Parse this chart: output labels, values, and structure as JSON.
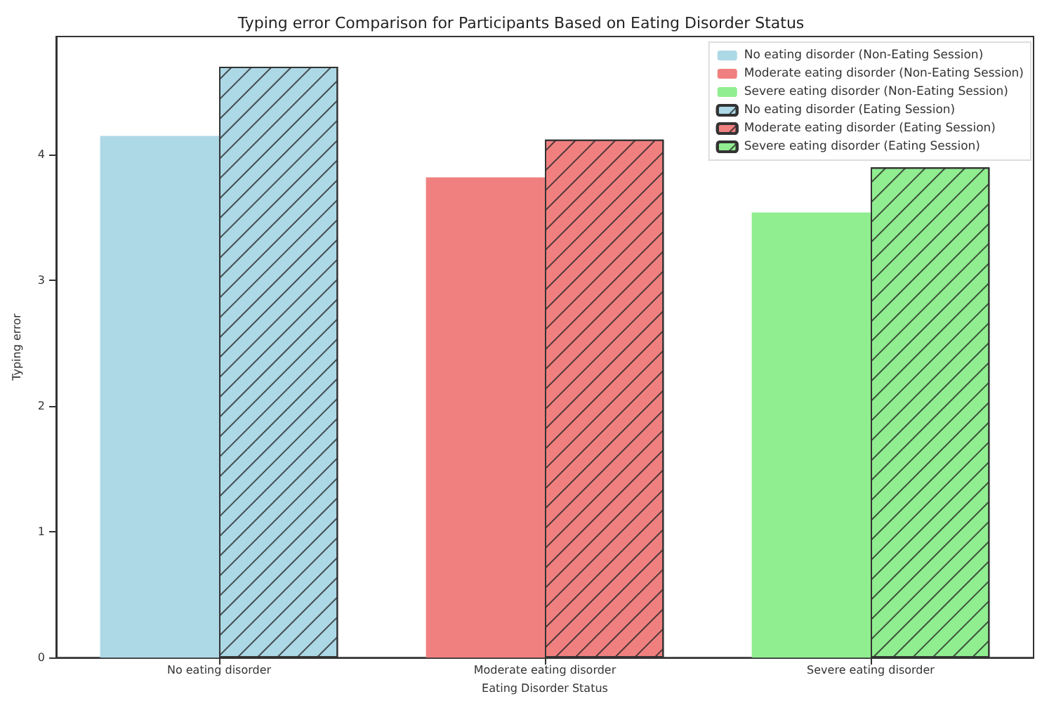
{
  "chart_data": {
    "type": "bar",
    "title": "Typing error Comparison for Participants Based on Eating Disorder Status",
    "xlabel": "Eating Disorder Status",
    "ylabel": "Typing error",
    "categories": [
      "No eating disorder",
      "Moderate eating disorder",
      "Severe eating disorder"
    ],
    "series": [
      {
        "name": "No eating disorder (Non-Eating Session)",
        "color": "#add8e6",
        "values": [
          4.15,
          null,
          null
        ]
      },
      {
        "name": "Moderate eating disorder (Non-Eating Session)",
        "color": "#f08080",
        "values": [
          null,
          3.82,
          null
        ]
      },
      {
        "name": "Severe eating disorder (Non-Eating Session)",
        "color": "#90ee90",
        "values": [
          null,
          null,
          3.54
        ]
      },
      {
        "name": "No eating disorder (Eating Session)",
        "color": "#add8e6",
        "values": [
          4.7,
          null,
          null
        ]
      },
      {
        "name": "Moderate eating disorder (Eating Session)",
        "color": "#f08080",
        "values": [
          null,
          4.12,
          null
        ]
      },
      {
        "name": "Severe eating disorder (Eating Session)",
        "color": "#90ee90",
        "values": [
          null,
          null,
          3.9
        ]
      }
    ],
    "ylim": [
      0,
      4.94
    ],
    "yticks": [
      0,
      1,
      2,
      3,
      4
    ],
    "grid": false,
    "legend": "top right"
  }
}
